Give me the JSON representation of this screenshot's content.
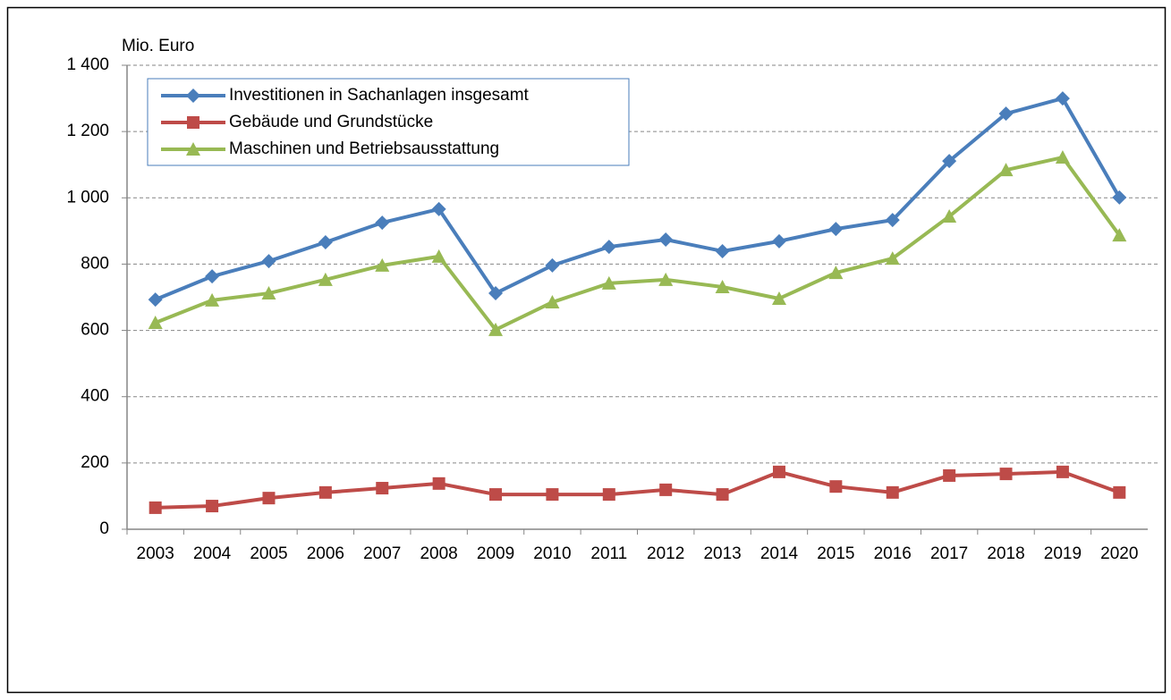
{
  "chart_data": {
    "type": "line",
    "y_axis_label": "Mio. Euro",
    "categories": [
      "2003",
      "2004",
      "2005",
      "2006",
      "2007",
      "2008",
      "2009",
      "2010",
      "2011",
      "2012",
      "2013",
      "2014",
      "2015",
      "2016",
      "2017",
      "2018",
      "2019",
      "2020"
    ],
    "series": [
      {
        "name": "Investitionen in Sachanlagen insgesamt",
        "color": "#4a7ebb",
        "marker": "diamond",
        "values": [
          693,
          763,
          809,
          866,
          925,
          966,
          712,
          796,
          852,
          874,
          839,
          869,
          906,
          933,
          1111,
          1254,
          1300,
          1001
        ]
      },
      {
        "name": "Gebäude und Grundstücke",
        "color": "#be4b48",
        "marker": "square",
        "values": [
          65,
          70,
          94,
          111,
          124,
          138,
          105,
          105,
          105,
          119,
          105,
          173,
          129,
          111,
          162,
          167,
          173,
          111
        ]
      },
      {
        "name": "Maschinen und Betriebsausstattung",
        "color": "#98b954",
        "marker": "triangle",
        "values": [
          623,
          691,
          712,
          753,
          796,
          823,
          602,
          685,
          742,
          753,
          731,
          696,
          774,
          817,
          944,
          1084,
          1122,
          887
        ]
      }
    ],
    "ylim": [
      0,
      1400
    ],
    "yticks": [
      0,
      200,
      400,
      600,
      800,
      {
        "value": 1000,
        "label": "1 000"
      },
      {
        "value": 1200,
        "label": "1 200"
      },
      {
        "value": 1400,
        "label": "1 400"
      }
    ],
    "grid": true
  }
}
